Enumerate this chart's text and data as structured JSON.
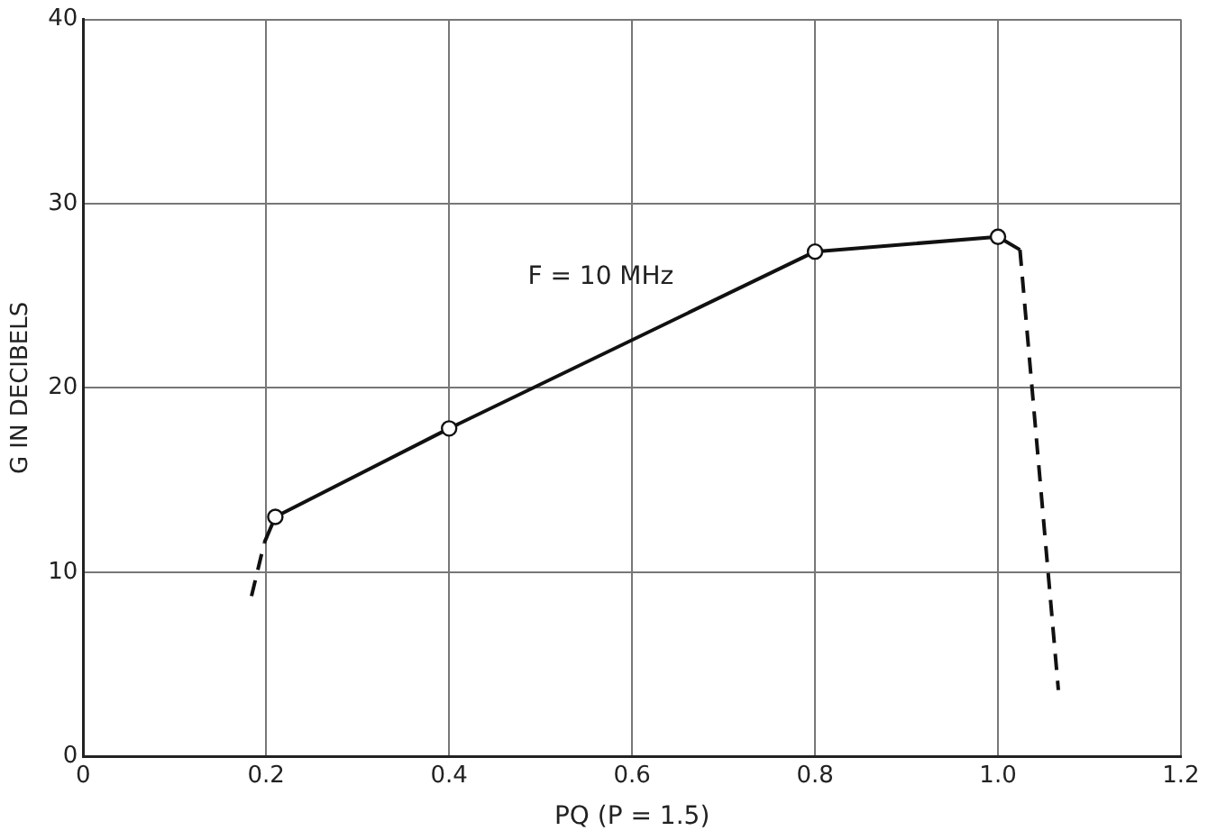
{
  "chart_data": {
    "type": "line",
    "xlabel": "PQ (P = 1.5)",
    "ylabel": "G IN DECIBELS",
    "xlim": [
      0,
      1.2
    ],
    "xticks": [
      0,
      0.2,
      0.4,
      0.6,
      0.8,
      {
        "value": 1,
        "label": "1.0"
      },
      1.2
    ],
    "ylim": [
      0,
      40
    ],
    "yticks": [
      0,
      10,
      20,
      30,
      40
    ],
    "grid": true,
    "annotations": [
      "F = 10 MHz"
    ],
    "series": [
      {
        "color": "#111111",
        "line_style": "solid",
        "marker": "none",
        "x": [
          0.198,
          0.21,
          0.4,
          0.8,
          1.0,
          1.024
        ],
        "values": [
          11.6,
          13.0,
          17.8,
          27.4,
          28.2,
          27.5
        ]
      },
      {
        "color": "#111111",
        "line_style": "dashed",
        "marker": "none",
        "x": [
          0.184,
          0.198
        ],
        "values": [
          8.7,
          11.6
        ]
      },
      {
        "color": "#111111",
        "line_style": "dashed",
        "marker": "none",
        "x": [
          1.024,
          1.066
        ],
        "values": [
          27.5,
          3.6
        ]
      },
      {
        "type": "scatter",
        "color": "#111111",
        "marker": "circle",
        "x": [
          0.21,
          0.4,
          0.8,
          1.0
        ],
        "values": [
          13.0,
          17.8,
          27.4,
          28.2
        ]
      }
    ]
  }
}
